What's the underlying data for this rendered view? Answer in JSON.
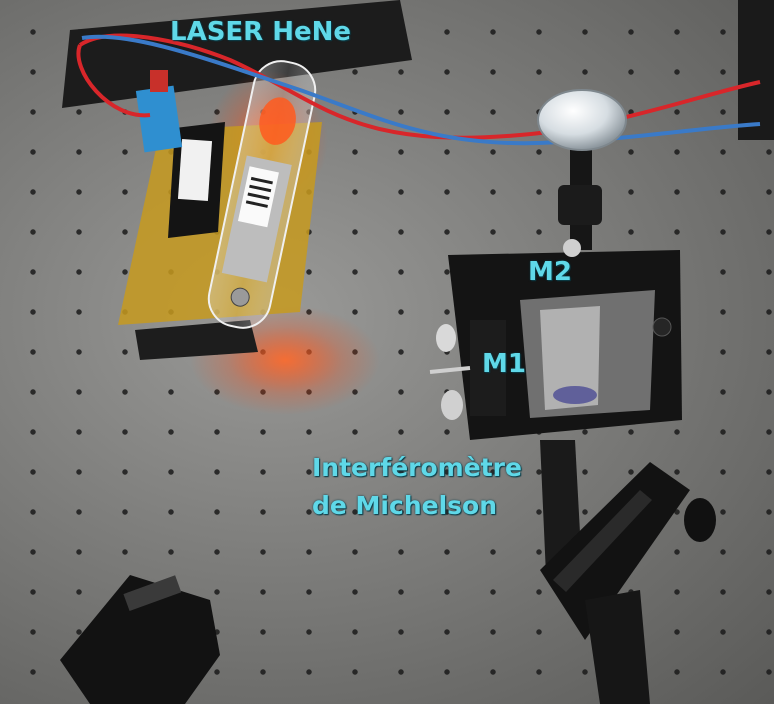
{
  "labels": {
    "laser": "LASER HeNe",
    "mirror_m2": "M2",
    "mirror_m1": "M1",
    "interferometer_line1": "Interféromètre",
    "interferometer_line2": "de Michelson"
  },
  "colors": {
    "label_text": "#5fd8e8",
    "table_surface": "#8c8c8a",
    "laser_glow": "#ff5a1e",
    "wire_red": "#d8262a",
    "wire_blue": "#3a7ac8",
    "mount_black": "#151515"
  }
}
